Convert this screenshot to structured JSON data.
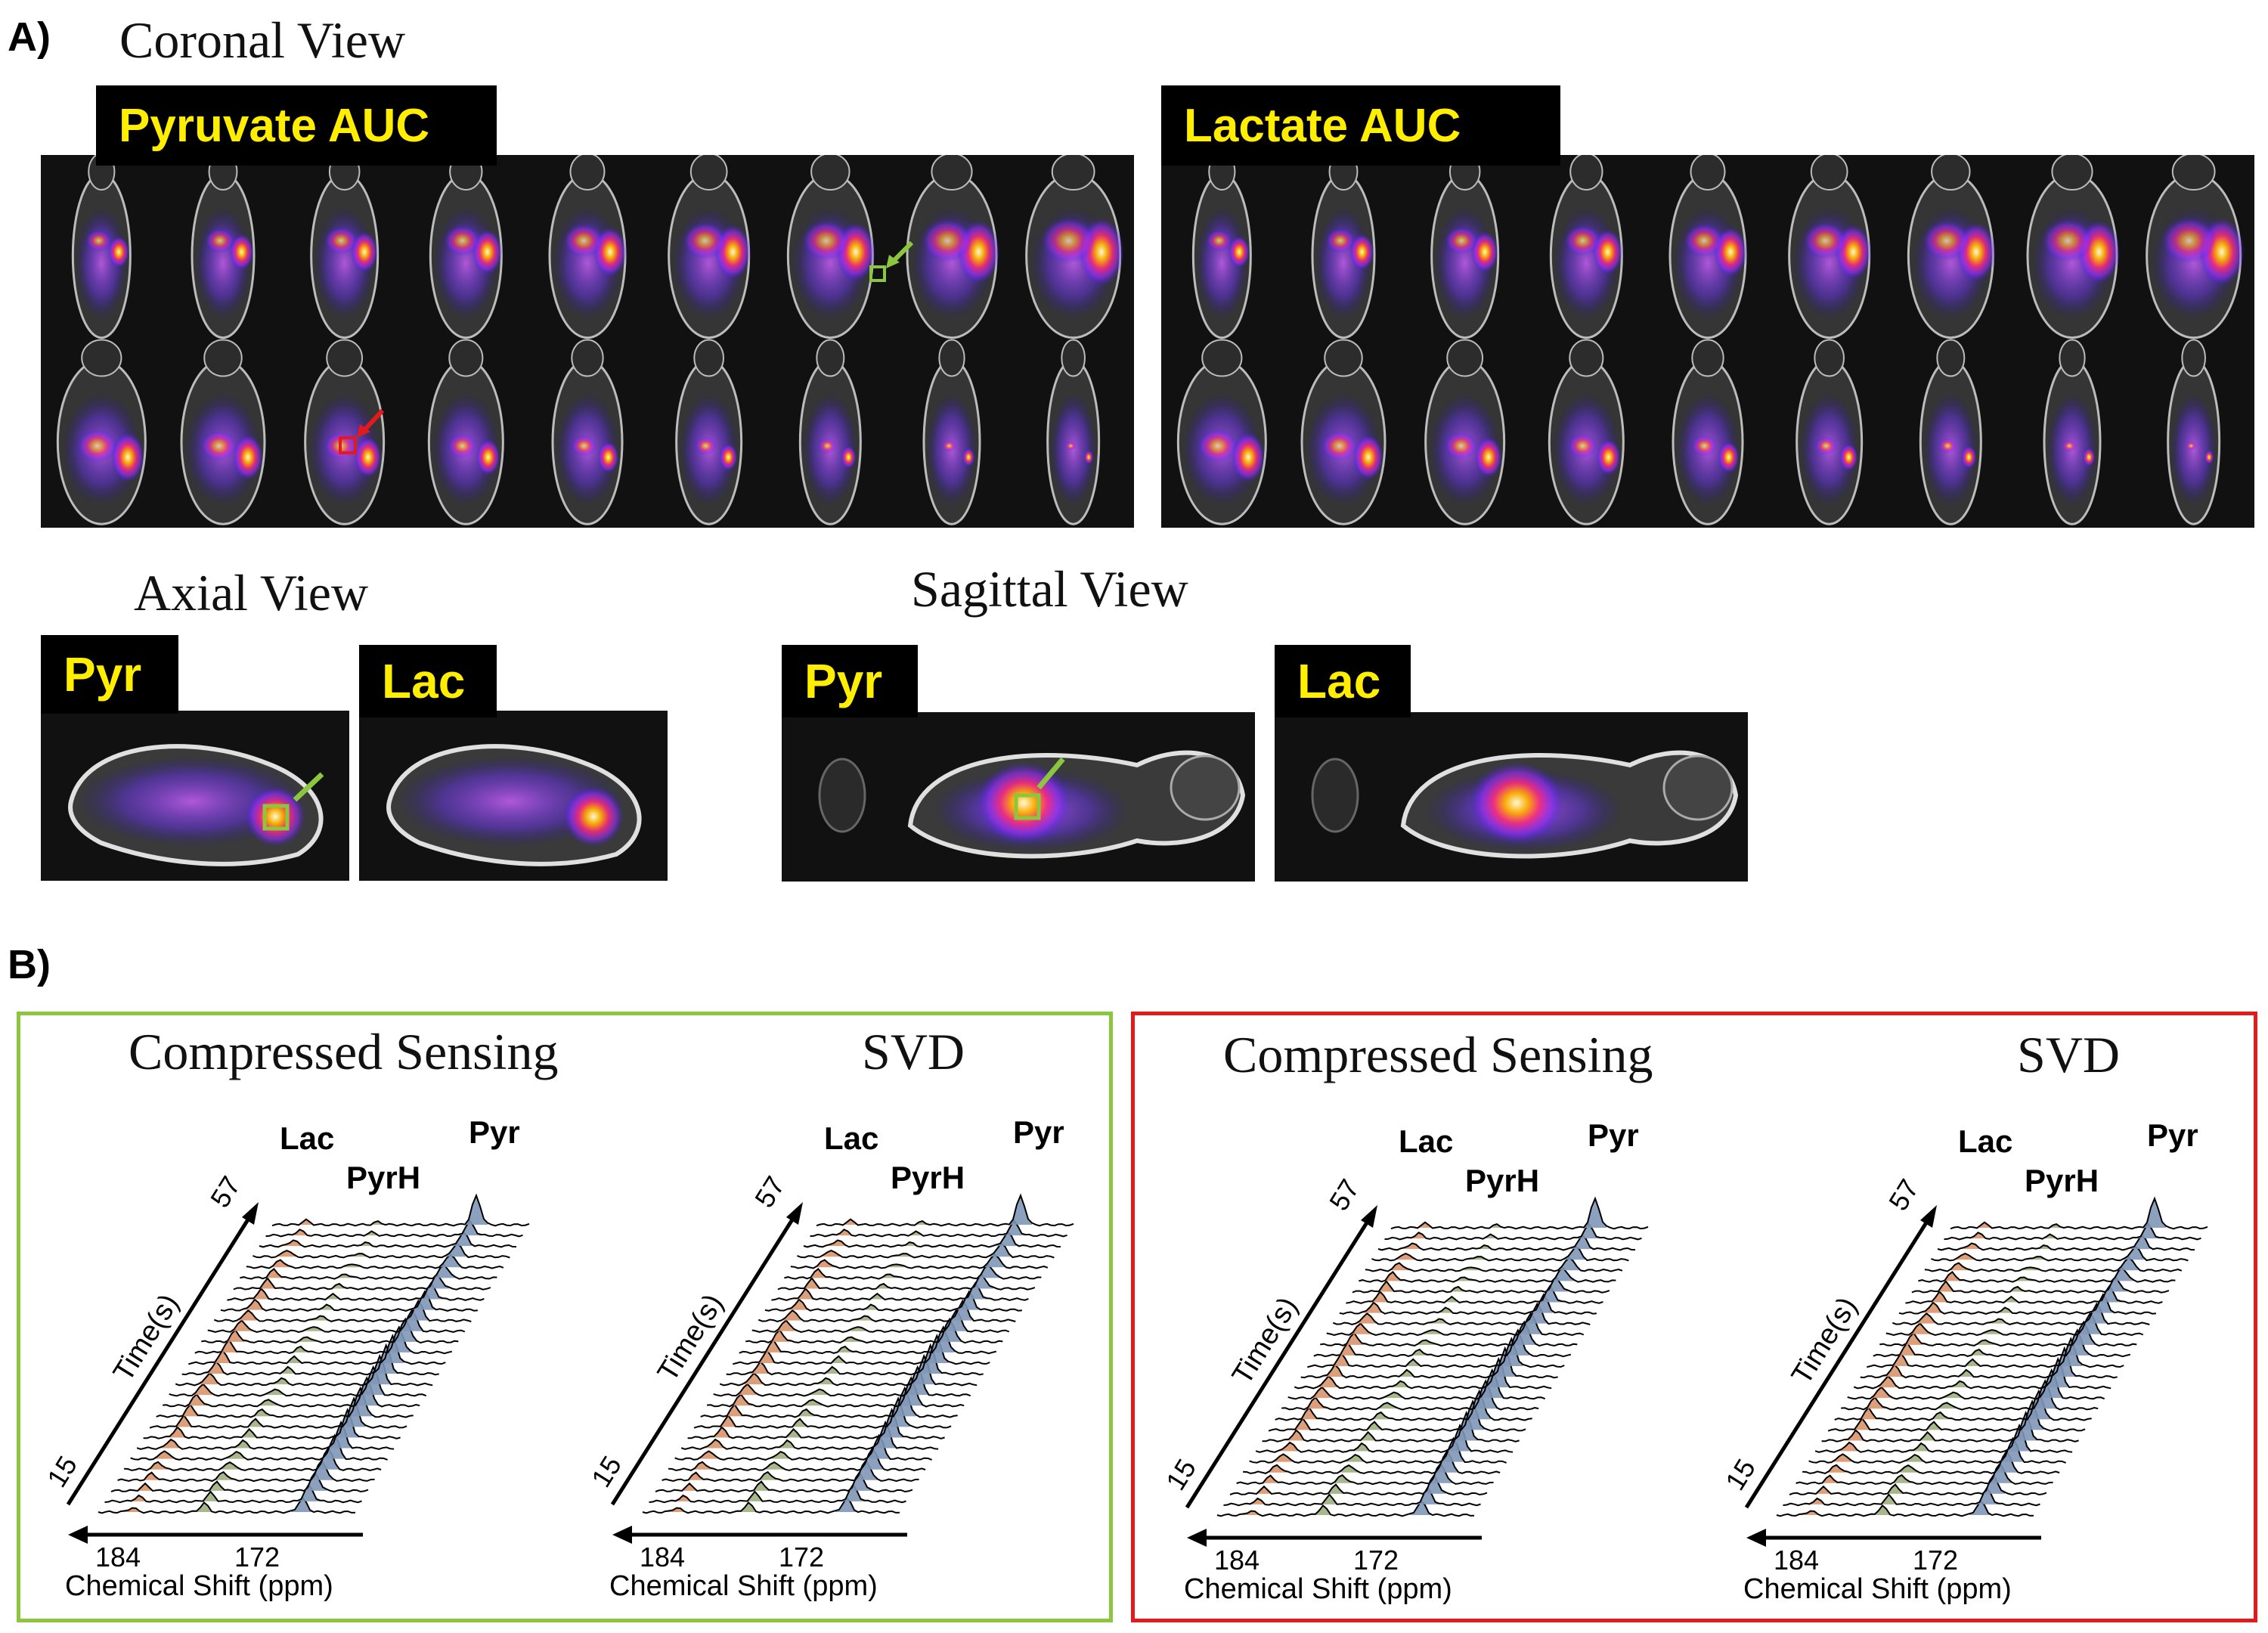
{
  "panel_a_label": "A)",
  "panel_b_label": "B)",
  "coronal": {
    "title": "Coronal View",
    "pyruvate_tag": "Pyruvate AUC",
    "lactate_tag": "Lactate AUC"
  },
  "axial": {
    "title": "Axial View",
    "pyr_tag": "Pyr",
    "lac_tag": "Lac"
  },
  "sagittal": {
    "title": "Sagittal View",
    "pyr_tag": "Pyr",
    "lac_tag": "Lac"
  },
  "colors": {
    "green_box": "#8cc63f",
    "red_box": "#e31a1c",
    "tag_text": "#ffee00",
    "pyr_fill": "#7f97b7",
    "lac_fill": "#d9956b",
    "pyrh_fill": "#9fb080"
  },
  "spectra": [
    {
      "method": "Compressed Sensing",
      "peaks": {
        "lac": "Lac",
        "pyrh": "PyrH",
        "pyr": "Pyr"
      },
      "time_axis": {
        "label": "Time(s)",
        "start": "15",
        "end": "57"
      },
      "shift_axis": {
        "label": "Chemical Shift (ppm)",
        "tick_left": "184",
        "tick_right": "172"
      }
    },
    {
      "method": "SVD",
      "peaks": {
        "lac": "Lac",
        "pyrh": "PyrH",
        "pyr": "Pyr"
      },
      "time_axis": {
        "label": "Time(s)",
        "start": "15",
        "end": "57"
      },
      "shift_axis": {
        "label": "Chemical Shift (ppm)",
        "tick_left": "184",
        "tick_right": "172"
      }
    },
    {
      "method": "Compressed Sensing",
      "peaks": {
        "lac": "Lac",
        "pyrh": "PyrH",
        "pyr": "Pyr"
      },
      "time_axis": {
        "label": "Time(s)",
        "start": "15",
        "end": "57"
      },
      "shift_axis": {
        "label": "Chemical Shift (ppm)",
        "tick_left": "184",
        "tick_right": "172"
      }
    },
    {
      "method": "SVD",
      "peaks": {
        "lac": "Lac",
        "pyrh": "PyrH",
        "pyr": "Pyr"
      },
      "time_axis": {
        "label": "Time(s)",
        "start": "15",
        "end": "57"
      },
      "shift_axis": {
        "label": "Chemical Shift (ppm)",
        "tick_left": "184",
        "tick_right": "172"
      }
    }
  ]
}
